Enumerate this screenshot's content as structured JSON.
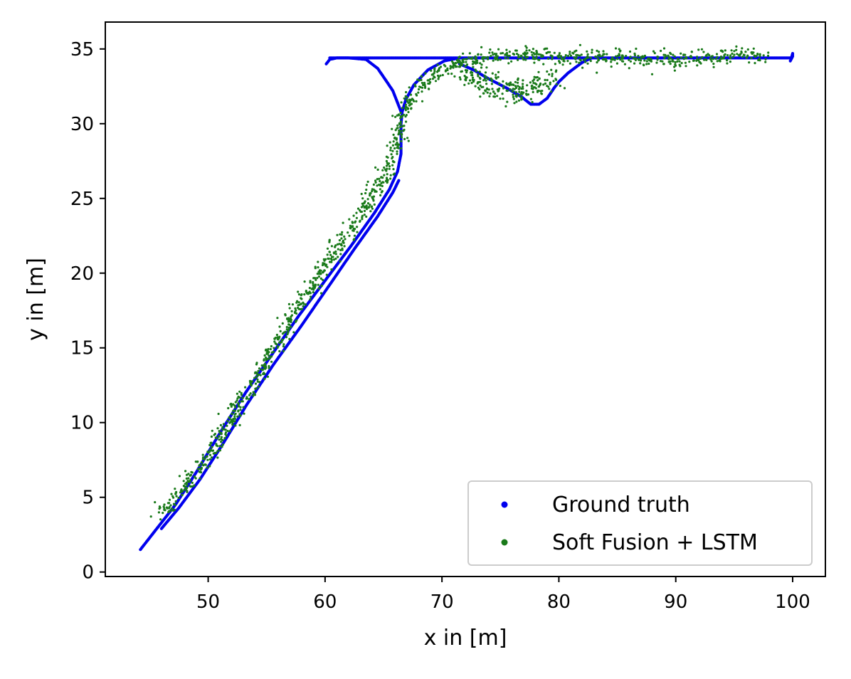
{
  "chart_data": {
    "type": "scatter",
    "title": "",
    "xlabel": "x in [m]",
    "ylabel": "y in [m]",
    "xlim": [
      41.2,
      102.8
    ],
    "ylim": [
      -0.3,
      36.8
    ],
    "xticks": [
      "50",
      "60",
      "70",
      "80",
      "90",
      "100"
    ],
    "yticks": [
      "0",
      "5",
      "10",
      "15",
      "20",
      "25",
      "30",
      "35"
    ],
    "grid": false,
    "legend_position": "lower-right",
    "series": [
      {
        "name": "Ground truth",
        "color": "#0000ee",
        "marker": "small-dots-dense-line",
        "segments": [
          {
            "x": [
              44.2,
              45.5,
              47.2,
              49.0,
              51.0,
              53.2,
              55.5,
              57.8,
              60.0,
              62.2,
              64.2,
              65.5,
              66.2,
              66.5,
              66.5,
              66.5,
              66.6,
              66.9,
              67.6,
              68.8,
              70.2,
              71.5
            ],
            "y": [
              1.5,
              2.8,
              4.5,
              6.7,
              9.3,
              12.0,
              14.6,
              17.2,
              19.5,
              21.8,
              24.0,
              25.6,
              26.8,
              28.0,
              29.0,
              30.0,
              30.8,
              31.6,
              32.6,
              33.6,
              34.2,
              34.4
            ]
          },
          {
            "x": [
              46.0,
              47.5,
              49.3,
              51.2,
              53.3,
              55.6,
              57.9,
              60.2,
              62.4,
              64.5,
              65.8,
              66.3
            ],
            "y": [
              2.9,
              4.3,
              6.2,
              8.5,
              11.2,
              13.9,
              16.4,
              19.0,
              21.5,
              23.8,
              25.4,
              26.2
            ]
          },
          {
            "x": [
              60.1,
              60.4,
              61.0,
              62.0,
              63.5,
              64.5,
              65.2,
              65.8,
              66.2,
              66.5
            ],
            "y": [
              34.0,
              34.3,
              34.4,
              34.4,
              34.3,
              33.7,
              32.9,
              32.2,
              31.4,
              30.8
            ]
          },
          {
            "x": [
              60.4,
              63.0,
              66.0,
              69.0,
              71.5,
              74.0,
              78.0,
              82.0,
              86.0,
              90.0,
              94.0,
              98.0,
              99.8
            ],
            "y": [
              34.4,
              34.4,
              34.4,
              34.4,
              34.4,
              34.4,
              34.4,
              34.4,
              34.4,
              34.4,
              34.4,
              34.4,
              34.4
            ]
          },
          {
            "x": [
              71.5,
              72.7,
              74.0,
              75.5,
              76.8,
              77.6,
              78.3,
              79.0,
              79.6,
              80.0,
              80.8,
              82.0,
              82.8
            ],
            "y": [
              34.0,
              33.6,
              33.0,
              32.4,
              31.8,
              31.3,
              31.3,
              31.7,
              32.4,
              32.8,
              33.4,
              34.1,
              34.4
            ]
          },
          {
            "x": [
              99.8,
              100.0,
              100.0,
              99.9
            ],
            "y": [
              34.2,
              34.5,
              34.7,
              34.4
            ]
          }
        ]
      },
      {
        "name": "Soft Fusion + LSTM",
        "color": "#1a7a1a",
        "marker": "small-dots-scattered",
        "path": {
          "x": [
            46.0,
            47.5,
            49.0,
            50.5,
            52.0,
            53.5,
            55.0,
            56.5,
            58.0,
            59.5,
            61.0,
            62.5,
            63.8,
            65.0,
            65.8,
            66.2,
            66.4,
            66.6,
            67.0,
            67.6,
            68.5,
            69.7,
            71.0,
            72.5,
            74.0,
            76.0,
            78.0,
            80.0,
            82.0,
            84.0,
            86.0,
            88.0,
            90.0,
            92.0,
            94.0,
            96.0,
            97.5
          ],
          "y": [
            3.9,
            5.2,
            6.6,
            8.4,
            10.2,
            12.2,
            14.2,
            16.2,
            18.1,
            19.8,
            21.6,
            23.4,
            25.0,
            26.5,
            27.8,
            28.8,
            29.6,
            30.3,
            31.0,
            31.8,
            32.7,
            33.5,
            33.9,
            34.3,
            34.5,
            34.6,
            34.6,
            34.5,
            34.4,
            34.5,
            34.4,
            34.3,
            34.2,
            34.4,
            34.5,
            34.6,
            34.6
          ]
        },
        "side_cloud": {
          "x": [
            71.5,
            72.5,
            73.5,
            74.5,
            75.5,
            76.5,
            77.5,
            78.5,
            79.5
          ],
          "y": [
            33.6,
            33.2,
            33.0,
            32.6,
            32.3,
            32.1,
            32.2,
            32.6,
            33.0
          ]
        }
      }
    ]
  }
}
